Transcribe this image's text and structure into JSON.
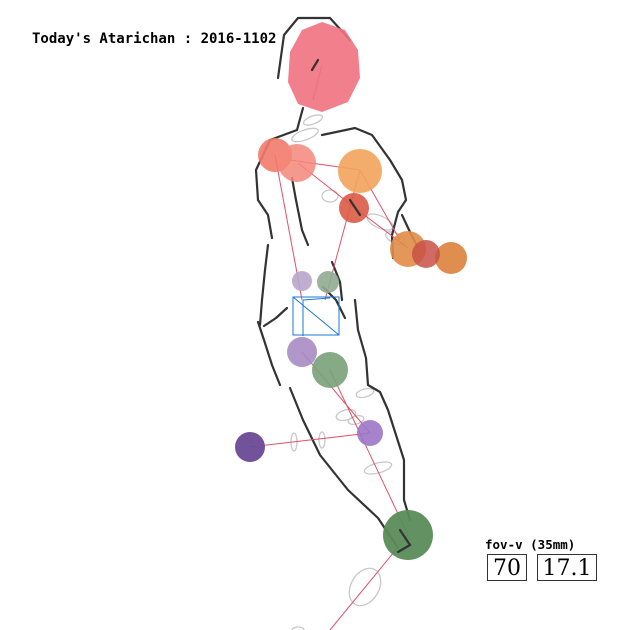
{
  "title": "Today's Atarichan : 2016-1102",
  "fov": {
    "label": "fov-v  (35mm)",
    "value": "70",
    "focal": "17.1"
  },
  "colors": {
    "head": "#f0717f",
    "skeleton_line": "#e0506a",
    "outline": "#333333",
    "ring": "#c8c8c8",
    "pelvis_box": "#1e78d2",
    "shoulder_left": "#f27a6c",
    "shoulder_right": "#f2a35c",
    "elbow": "#dc5a46",
    "hand": "#dc823c",
    "hip": "#a98bc4",
    "knee": "#9b75c8",
    "foot_left": "#6a4a96",
    "leg": "#6e9a6e",
    "foot_right": "#5a8c5a"
  }
}
